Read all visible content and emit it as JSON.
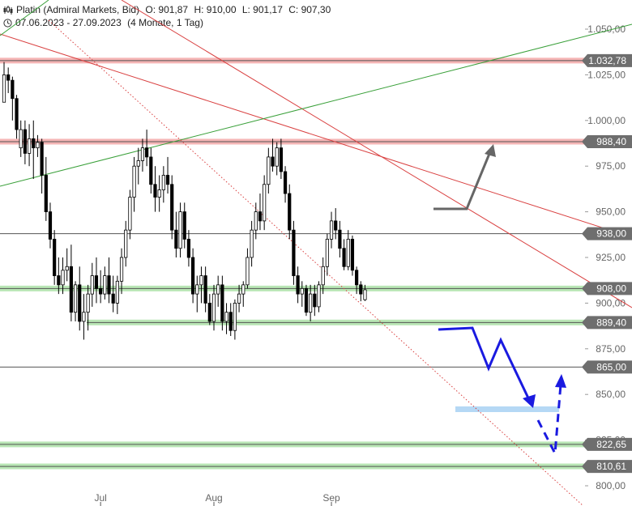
{
  "header": {
    "instrument": "Platin (Admiral Markets, Bid)",
    "open": "O: 901,87",
    "high": "H: 910,00",
    "low": "L: 901,17",
    "close": "C: 907,30",
    "period": "07.06.2023 - 27.09.2023",
    "interval": "(4 Monate, 1 Tag)"
  },
  "chart_data": {
    "type": "candlestick",
    "title": "Platin (Admiral Markets, Bid)",
    "ylim": [
      796,
      1058
    ],
    "y_ticks": [
      "800,00",
      "825,00",
      "850,00",
      "875,00",
      "900,00",
      "925,00",
      "950,00",
      "975,00",
      "1.000,00",
      "1.025,00",
      "1.050,00"
    ],
    "y_tick_values": [
      800,
      825,
      850,
      875,
      900,
      925,
      950,
      975,
      1000,
      1025,
      1050
    ],
    "x_tick_labels": [
      "Jul",
      "Aug",
      "Sep"
    ],
    "x_tick_index": [
      23,
      50,
      78
    ],
    "candles": [
      [
        1010,
        1032,
        1010,
        1025
      ],
      [
        1025,
        1029,
        1015,
        1022
      ],
      [
        1022,
        1024,
        1000,
        1012
      ],
      [
        1012,
        1014,
        990,
        995
      ],
      [
        985,
        1000,
        980,
        995
      ],
      [
        995,
        1000,
        976,
        982
      ],
      [
        982,
        998,
        975,
        990
      ],
      [
        990,
        1000,
        968,
        985
      ],
      [
        985,
        992,
        980,
        988
      ],
      [
        988,
        990,
        960,
        970
      ],
      [
        970,
        980,
        945,
        950
      ],
      [
        950,
        955,
        930,
        935
      ],
      [
        935,
        940,
        910,
        915
      ],
      [
        915,
        925,
        905,
        910
      ],
      [
        910,
        925,
        905,
        918
      ],
      [
        918,
        930,
        912,
        920
      ],
      [
        920,
        932,
        890,
        895
      ],
      [
        895,
        912,
        890,
        910
      ],
      [
        910,
        920,
        885,
        890
      ],
      [
        890,
        905,
        880,
        895
      ],
      [
        895,
        910,
        885,
        905
      ],
      [
        905,
        922,
        898,
        915
      ],
      [
        915,
        925,
        900,
        908
      ],
      [
        908,
        918,
        900,
        905
      ],
      [
        905,
        920,
        902,
        915
      ],
      [
        915,
        925,
        900,
        905
      ],
      [
        905,
        915,
        895,
        900
      ],
      [
        900,
        915,
        894,
        912
      ],
      [
        912,
        930,
        905,
        925
      ],
      [
        925,
        945,
        920,
        940
      ],
      [
        940,
        962,
        935,
        958
      ],
      [
        958,
        980,
        950,
        975
      ],
      [
        975,
        985,
        965,
        978
      ],
      [
        978,
        990,
        972,
        985
      ],
      [
        985,
        995,
        975,
        980
      ],
      [
        980,
        985,
        960,
        965
      ],
      [
        965,
        975,
        950,
        958
      ],
      [
        958,
        970,
        950,
        962
      ],
      [
        962,
        975,
        955,
        970
      ],
      [
        970,
        980,
        960,
        965
      ],
      [
        965,
        970,
        935,
        940
      ],
      [
        940,
        950,
        925,
        930
      ],
      [
        930,
        955,
        925,
        950
      ],
      [
        950,
        955,
        930,
        935
      ],
      [
        935,
        940,
        920,
        925
      ],
      [
        925,
        930,
        900,
        905
      ],
      [
        905,
        915,
        895,
        910
      ],
      [
        910,
        920,
        900,
        915
      ],
      [
        915,
        920,
        895,
        900
      ],
      [
        900,
        905,
        888,
        890
      ],
      [
        890,
        910,
        885,
        905
      ],
      [
        905,
        915,
        898,
        910
      ],
      [
        910,
        915,
        885,
        890
      ],
      [
        890,
        900,
        883,
        895
      ],
      [
        895,
        900,
        882,
        885
      ],
      [
        885,
        902,
        880,
        900
      ],
      [
        900,
        910,
        895,
        905
      ],
      [
        905,
        912,
        898,
        910
      ],
      [
        910,
        930,
        908,
        925
      ],
      [
        925,
        945,
        920,
        940
      ],
      [
        940,
        955,
        935,
        950
      ],
      [
        950,
        960,
        940,
        945
      ],
      [
        945,
        970,
        940,
        965
      ],
      [
        965,
        985,
        960,
        980
      ],
      [
        980,
        990,
        972,
        975
      ],
      [
        975,
        988,
        970,
        985
      ],
      [
        985,
        990,
        968,
        972
      ],
      [
        972,
        975,
        955,
        960
      ],
      [
        960,
        965,
        935,
        940
      ],
      [
        940,
        945,
        910,
        915
      ],
      [
        915,
        920,
        900,
        905
      ],
      [
        905,
        912,
        898,
        908
      ],
      [
        908,
        910,
        893,
        895
      ],
      [
        895,
        910,
        890,
        905
      ],
      [
        905,
        910,
        893,
        898
      ],
      [
        898,
        912,
        895,
        910
      ],
      [
        910,
        925,
        905,
        920
      ],
      [
        920,
        938,
        915,
        935
      ],
      [
        935,
        950,
        930,
        945
      ],
      [
        945,
        952,
        935,
        940
      ],
      [
        940,
        945,
        925,
        930
      ],
      [
        930,
        935,
        918,
        920
      ],
      [
        920,
        940,
        918,
        935
      ],
      [
        935,
        937,
        915,
        918
      ],
      [
        918,
        920,
        905,
        910
      ],
      [
        910,
        912,
        901,
        905
      ],
      [
        901.87,
        910,
        901.17,
        907.3
      ]
    ],
    "levels": [
      {
        "label": "1.032,78",
        "value": 1032.78,
        "kind": "resistance"
      },
      {
        "label": "988,40",
        "value": 988.4,
        "kind": "resistance"
      },
      {
        "label": "938,00",
        "value": 938,
        "kind": "line"
      },
      {
        "label": "908,00",
        "value": 908,
        "kind": "support"
      },
      {
        "label": "889,40",
        "value": 889.4,
        "kind": "support"
      },
      {
        "label": "865,00",
        "value": 865,
        "kind": "line"
      },
      {
        "label": "822,65",
        "value": 822.65,
        "kind": "support"
      },
      {
        "label": "810,61",
        "value": 810.61,
        "kind": "support"
      }
    ],
    "colors": {
      "resistance_band": "#f5b5b5",
      "support_band": "#b9e6b5",
      "trend_red": "#d94040",
      "trend_green": "#3aa03a",
      "arrow_grey": "#666666",
      "arrow_blue": "#1a1ae0",
      "target_band": "#b5d8f5"
    }
  }
}
